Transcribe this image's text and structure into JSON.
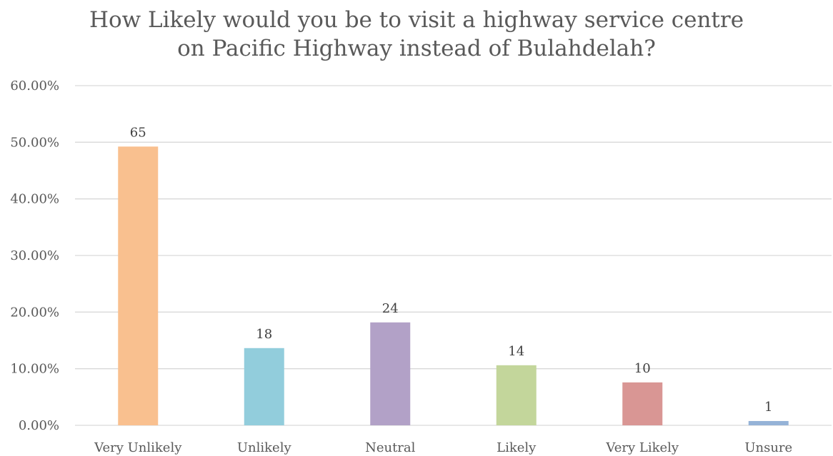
{
  "chart_data": {
    "type": "bar",
    "title_lines": [
      "How Likely would you be to visit a highway service centre",
      "on Pacific Highway instead of Bulahdelah?"
    ],
    "categories": [
      "Very Unlikely",
      "Unlikely",
      "Neutral",
      "Likely",
      "Very Likely",
      "Unsure"
    ],
    "values": [
      0.4924,
      0.1364,
      0.1818,
      0.1061,
      0.0758,
      0.0076
    ],
    "data_labels": [
      "65",
      "18",
      "24",
      "14",
      "10",
      "1"
    ],
    "colors": [
      "#F9C08F",
      "#92CDDC",
      "#B2A1C7",
      "#C3D69B",
      "#D99694",
      "#95B3D7"
    ],
    "ylim": [
      0,
      0.6
    ],
    "yticks": [
      0,
      0.1,
      0.2,
      0.3,
      0.4,
      0.5,
      0.6
    ],
    "ytick_labels": [
      "0.00%",
      "10.00%",
      "20.00%",
      "30.00%",
      "40.00%",
      "50.00%",
      "60.00%"
    ],
    "grid": true,
    "gridline_color": "#D9D9D9",
    "legend": "none"
  }
}
